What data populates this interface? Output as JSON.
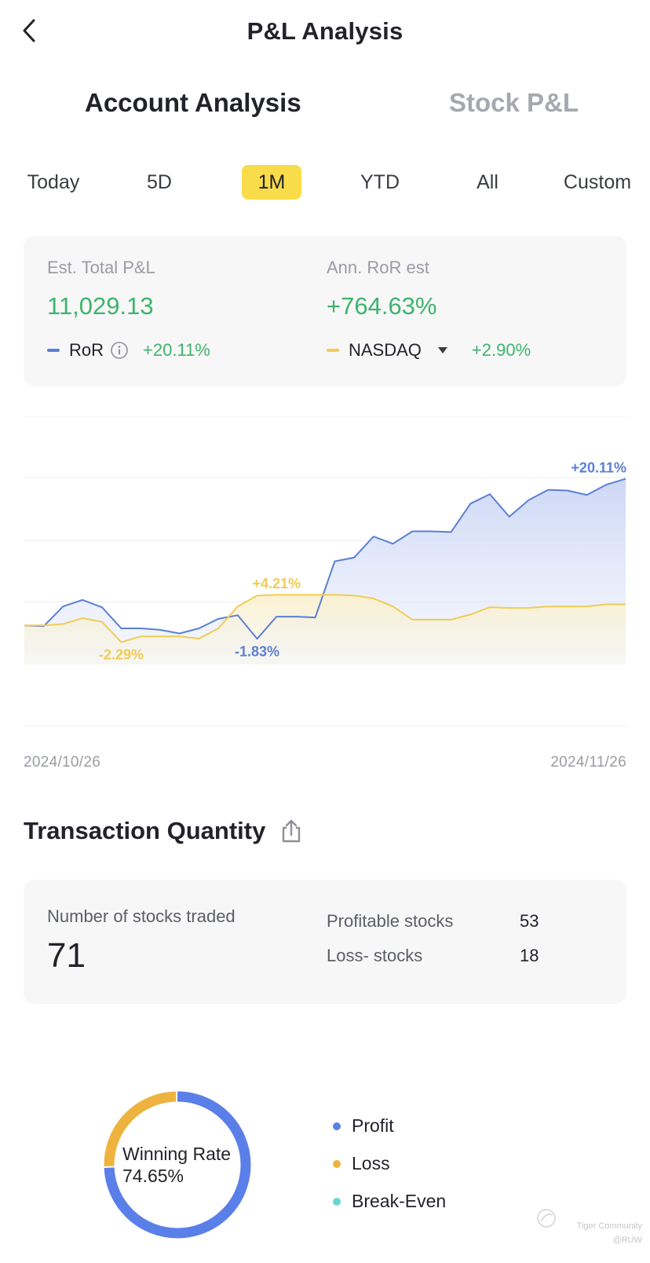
{
  "header": {
    "title": "P&L Analysis"
  },
  "tabs": {
    "active": "Account Analysis",
    "inactive": "Stock P&L"
  },
  "periods": [
    "Today",
    "5D",
    "1M",
    "YTD",
    "All",
    "Custom"
  ],
  "summary": {
    "total_label": "Est. Total P&L",
    "total_value": "11,029.13",
    "ror_est_label": "Ann. RoR est",
    "ror_est_value": "+764.63%",
    "ror_legend": "RoR",
    "ror_pct": "+20.11%",
    "bench_legend": "NASDAQ",
    "bench_pct": "+2.90%"
  },
  "colors": {
    "ror": "#5a7fd6",
    "nasdaq": "#f0cc55",
    "positive": "#3db46b",
    "active_period": "#f8dc4a",
    "profit": "#5b7fe8",
    "loss": "#eeb33f",
    "break_even": "#6ad7cf"
  },
  "chart_data": {
    "type": "line",
    "x_start": "2024/10/26",
    "x_end": "2024/11/26",
    "y_unit": "%",
    "series": [
      {
        "name": "RoR",
        "values": [
          0,
          -0.1,
          2.6,
          3.5,
          2.5,
          -0.4,
          -0.4,
          -0.6,
          -1.1,
          -0.4,
          0.9,
          1.4,
          -1.83,
          1.2,
          1.2,
          1.1,
          8.8,
          9.3,
          12.2,
          11.2,
          12.9,
          12.9,
          12.8,
          16.7,
          18.0,
          14.9,
          17.2,
          18.6,
          18.5,
          17.9,
          19.3,
          20.11
        ]
      },
      {
        "name": "NASDAQ",
        "values": [
          0,
          0,
          0.2,
          1.0,
          0.5,
          -2.29,
          -1.5,
          -1.5,
          -1.5,
          -1.8,
          -0.4,
          2.6,
          4.1,
          4.21,
          4.21,
          4.21,
          4.21,
          4.1,
          3.7,
          2.6,
          0.8,
          0.8,
          0.8,
          1.5,
          2.5,
          2.4,
          2.4,
          2.6,
          2.6,
          2.6,
          2.9,
          2.9
        ]
      }
    ],
    "annotations": [
      {
        "series": "RoR",
        "label": "+20.11%",
        "index": 31
      },
      {
        "series": "RoR",
        "label": "-1.83%",
        "index": 12
      },
      {
        "series": "NASDAQ",
        "label": "-2.29%",
        "index": 5
      },
      {
        "series": "NASDAQ",
        "label": "+4.21%",
        "index": 13
      }
    ]
  },
  "transactions": {
    "section_title": "Transaction Quantity",
    "count_label": "Number of  stocks traded",
    "count": "71",
    "profitable_label": "Profitable stocks",
    "profitable": "53",
    "loss_label": "Loss- stocks",
    "loss": "18"
  },
  "winning": {
    "title": "Winning Rate",
    "rate": "74.65%",
    "rate_value": 74.65,
    "legend": [
      "Profit",
      "Loss",
      "Break-Even"
    ]
  },
  "watermark": {
    "brand": "Tiger Community",
    "user": "@RUW"
  }
}
